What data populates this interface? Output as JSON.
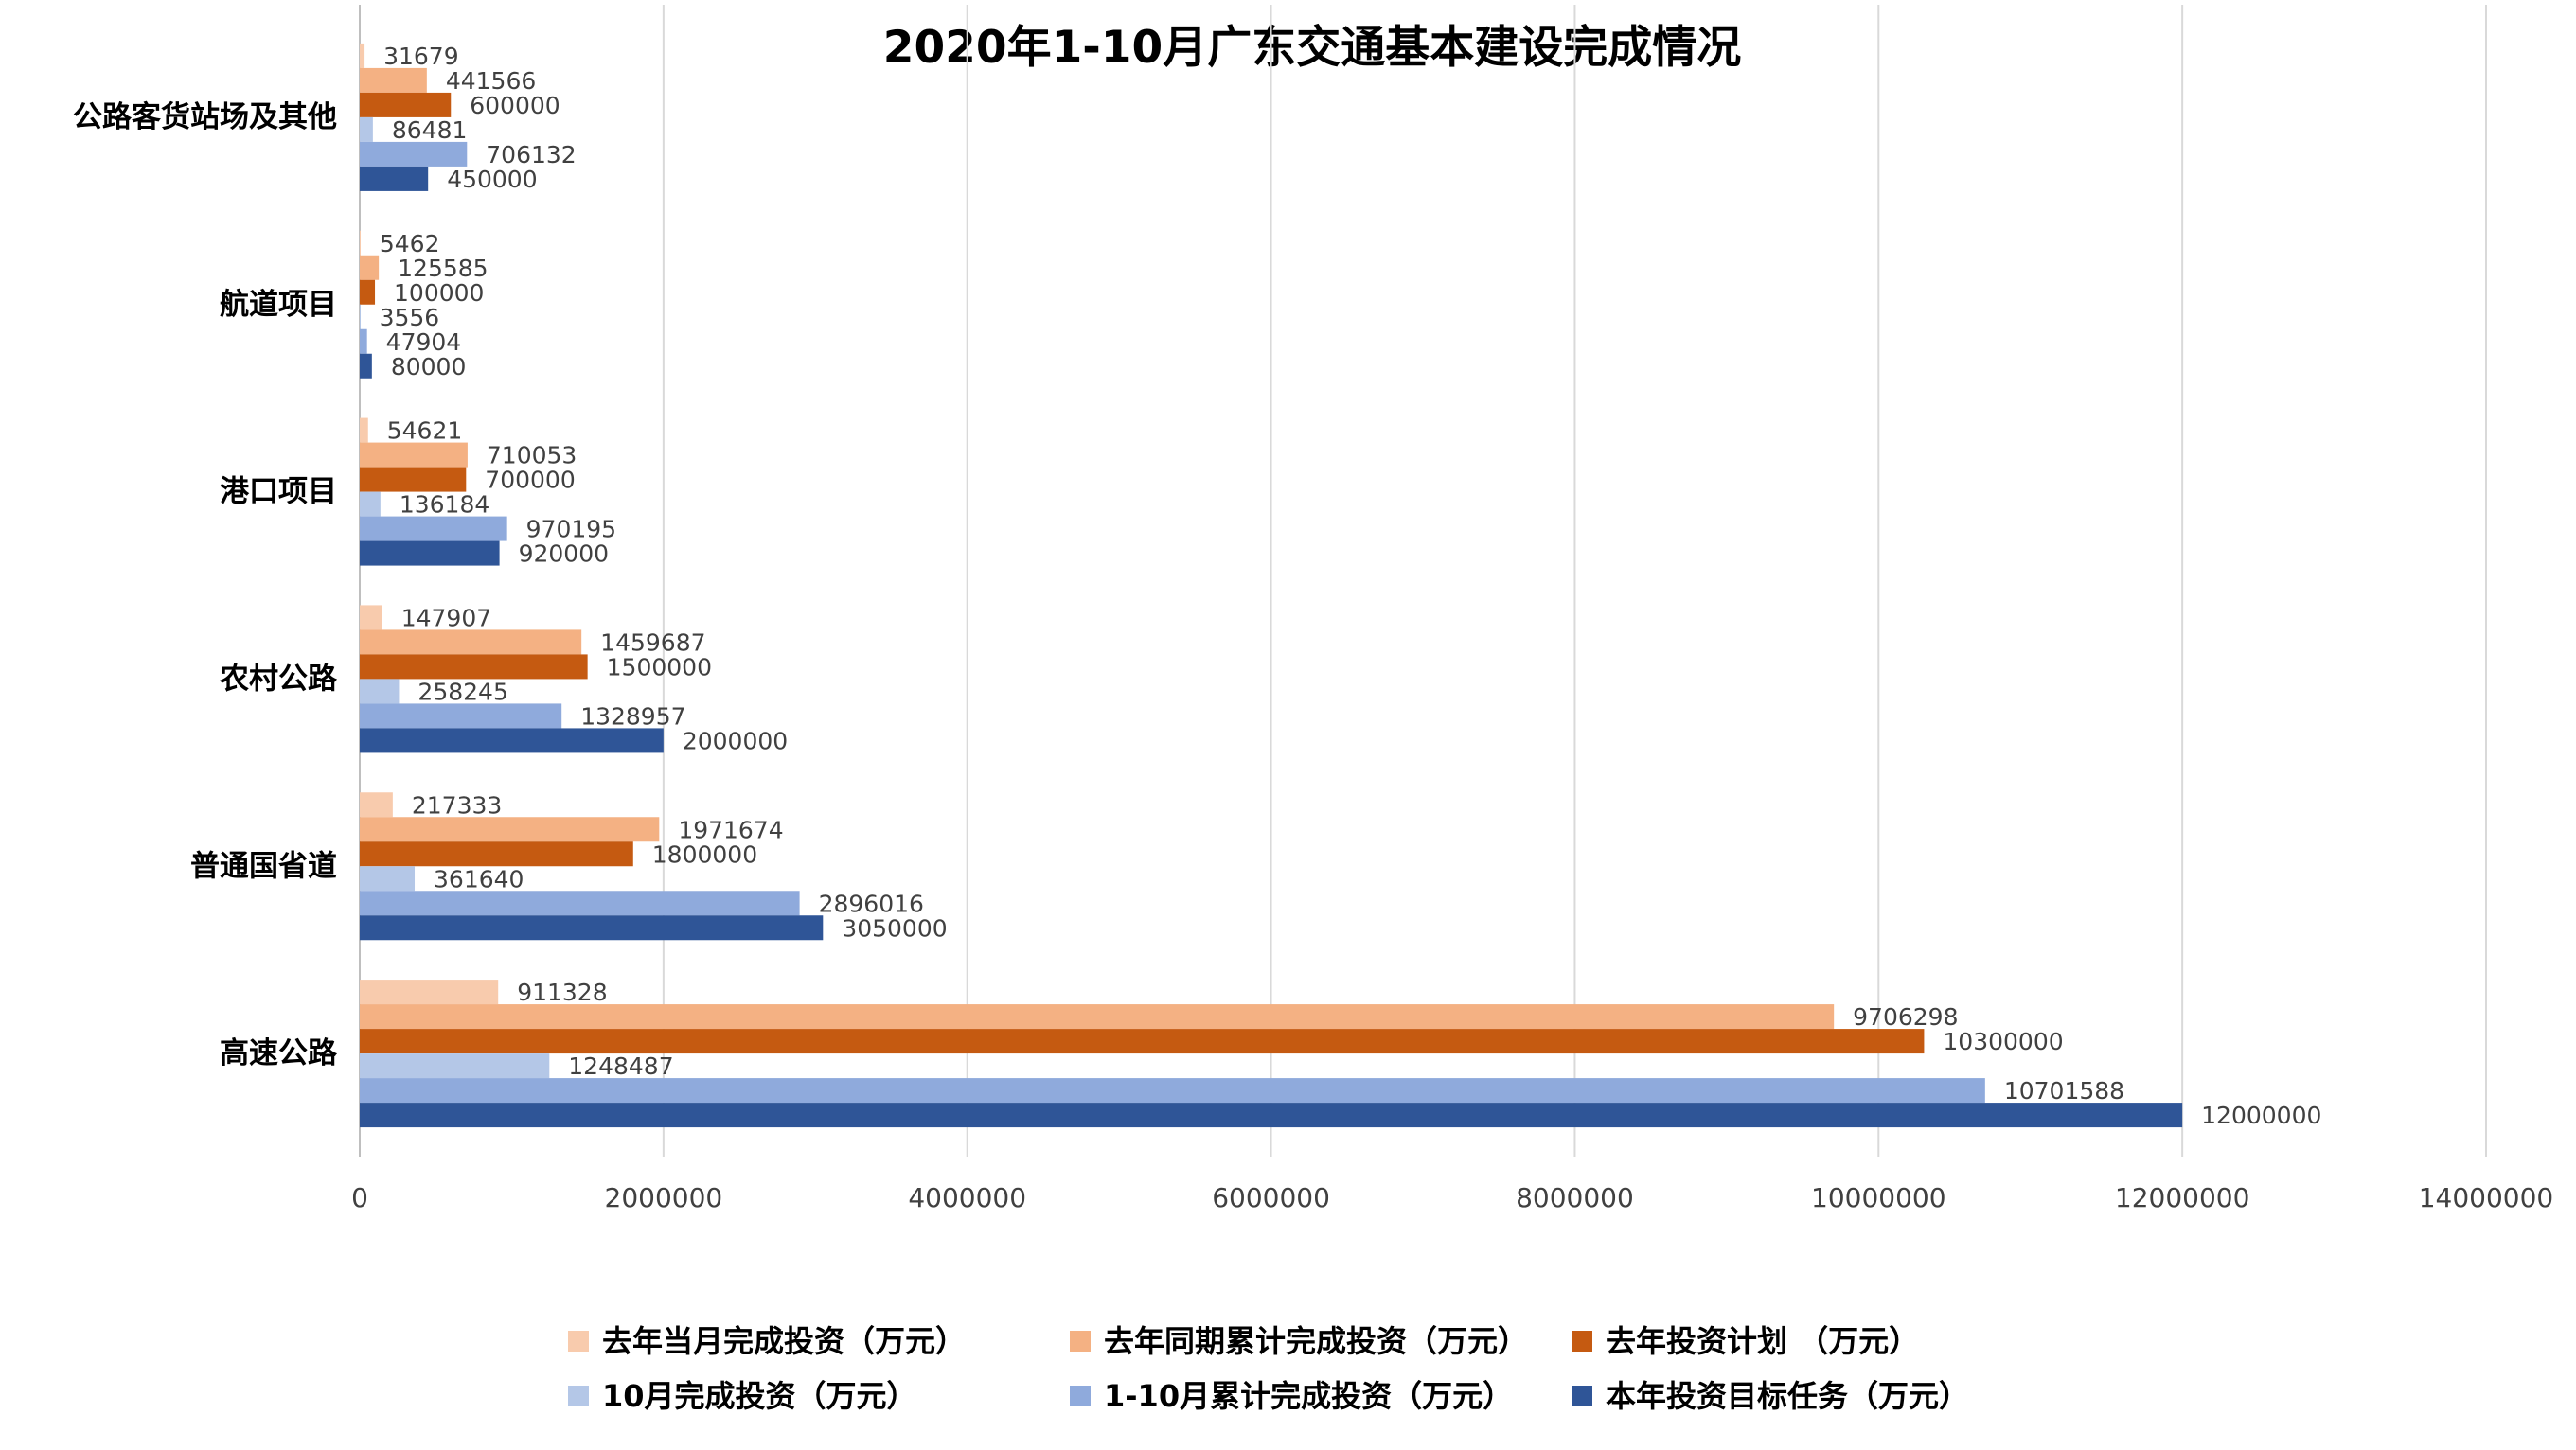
{
  "chart_data": {
    "type": "bar",
    "orientation": "horizontal",
    "title": "2020年1-10月广东交通基本建设完成情况",
    "categories": [
      "公路客货站场及其他",
      "航道项目",
      "港口项目",
      "农村公路",
      "普通国省道",
      "高速公路"
    ],
    "series": [
      {
        "name": "去年当月完成投资（万元）",
        "color": "#f8cbad",
        "values": [
          31679,
          5462,
          54621,
          147907,
          217333,
          911328
        ]
      },
      {
        "name": "去年同期累计完成投资（万元）",
        "color": "#f4b183",
        "values": [
          441566,
          125585,
          710053,
          1459687,
          1971674,
          9706298
        ]
      },
      {
        "name": "去年投资计划 （万元）",
        "color": "#c55a11",
        "values": [
          600000,
          100000,
          700000,
          1500000,
          1800000,
          10300000
        ]
      },
      {
        "name": "10月完成投资（万元）",
        "color": "#b4c7e7",
        "values": [
          86481,
          3556,
          136184,
          258245,
          361640,
          1248487
        ]
      },
      {
        "name": "1-10月累计完成投资（万元）",
        "color": "#8faadc",
        "values": [
          706132,
          47904,
          970195,
          1328957,
          2896016,
          10701588
        ]
      },
      {
        "name": "本年投资目标任务（万元）",
        "color": "#2f5597",
        "values": [
          450000,
          80000,
          920000,
          2000000,
          3050000,
          12000000
        ]
      }
    ],
    "x_ticks": [
      "0",
      "2000000",
      "4000000",
      "6000000",
      "8000000",
      "10000000",
      "12000000",
      "14000000"
    ],
    "xlim": [
      0,
      14000000
    ],
    "grid": true,
    "legend_position": "bottom"
  }
}
